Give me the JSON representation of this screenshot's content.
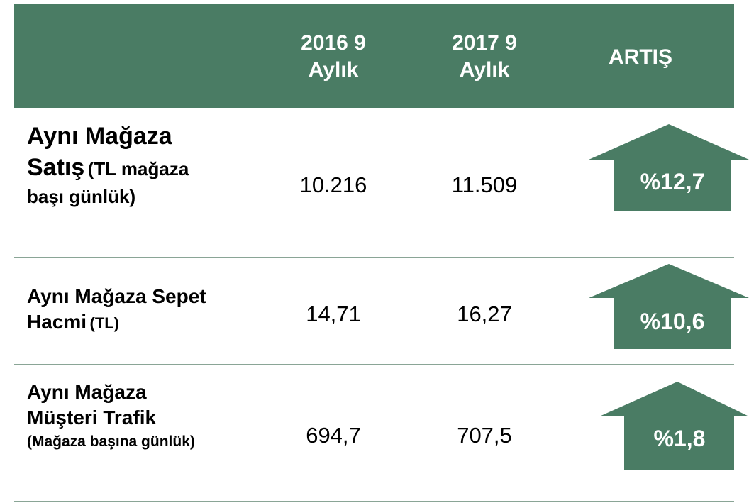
{
  "table": {
    "header": [
      {
        "line1": "2016  9",
        "line2": "Aylık"
      },
      {
        "line1": "2017  9",
        "line2": "Aylık"
      },
      {
        "line1": "ARTIŞ"
      }
    ],
    "rows": [
      {
        "label": "Aynı Mağaza Satış",
        "note": "(TL mağaza başı günlük)",
        "v2016": "10.216",
        "v2017": "11.509",
        "increase": "%12,7"
      },
      {
        "label": "Aynı Mağaza Sepet Hacmi",
        "note": "(TL)",
        "v2016": "14,71",
        "v2017": "16,27",
        "increase": "%10,6"
      },
      {
        "label": "Aynı Mağaza Müşteri Trafik",
        "note": "(Mağaza başına günlük)",
        "v2016": "694,7",
        "v2017": "707,5",
        "increase": "%1,8"
      }
    ]
  }
}
